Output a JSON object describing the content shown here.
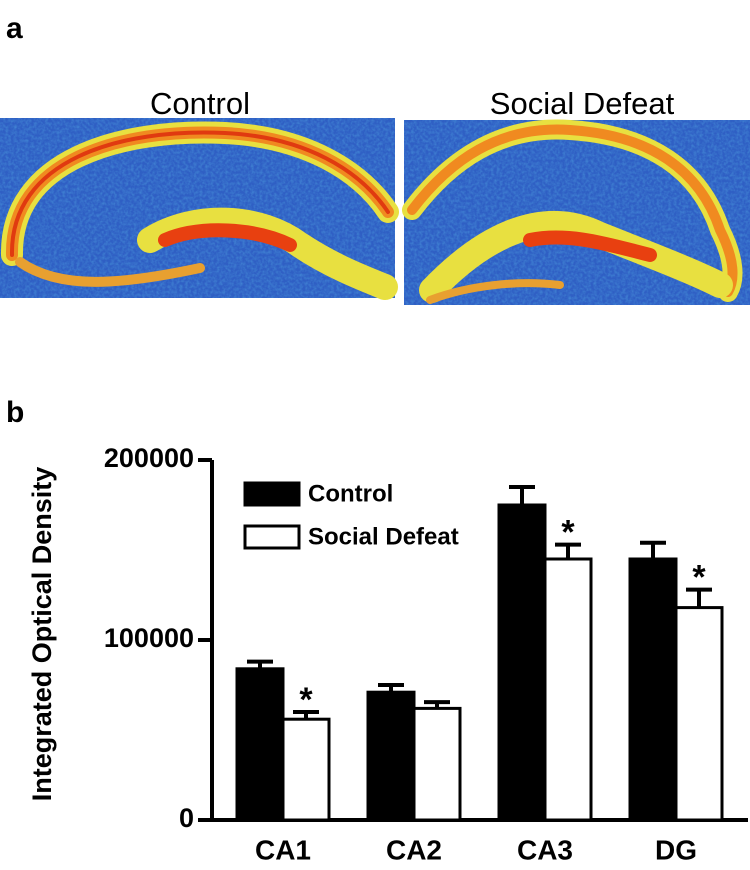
{
  "panels": [
    "a",
    "b"
  ],
  "images": [
    {
      "title": "Control"
    },
    {
      "title": "Social Defeat"
    }
  ],
  "chart_data": {
    "type": "bar",
    "categories": [
      "CA1",
      "CA2",
      "CA3",
      "DG"
    ],
    "ylabel": "Integrated Optical Density",
    "ylim": [
      0,
      200000
    ],
    "yticks": [
      0,
      100000,
      200000
    ],
    "legend": "upper left",
    "series": [
      {
        "name": "Control",
        "color": "#000000",
        "values": [
          84000,
          71000,
          175000,
          145000
        ],
        "errors": [
          4000,
          4000,
          10000,
          9000
        ]
      },
      {
        "name": "Social Defeat",
        "color": "#ffffff",
        "values": [
          56000,
          62000,
          145000,
          118000
        ],
        "errors": [
          4000,
          3500,
          8000,
          10000
        ]
      }
    ],
    "annotations": [
      {
        "text": "*",
        "category": "CA1",
        "series": "Social Defeat"
      },
      {
        "text": "*",
        "category": "CA3",
        "series": "Social Defeat"
      },
      {
        "text": "*",
        "category": "DG",
        "series": "Social Defeat"
      }
    ]
  }
}
